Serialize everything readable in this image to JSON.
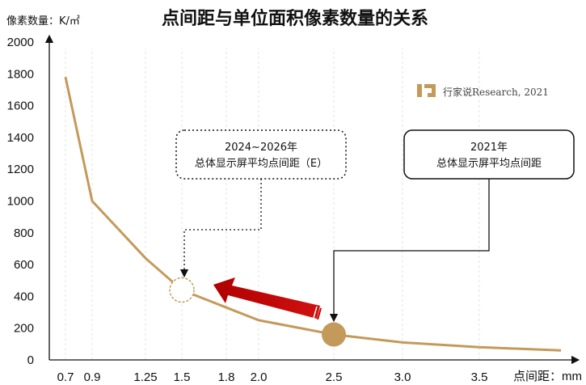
{
  "chart_data": {
    "type": "line",
    "title": "点间距与单位面积像素数量的关系",
    "ylabel": "像素数量：K/㎡",
    "xlabel": "点间距：mm",
    "ylim": [
      0,
      2000
    ],
    "yticks": [
      0,
      200,
      400,
      600,
      800,
      1000,
      1200,
      1400,
      1600,
      1800,
      2000
    ],
    "xticks": [
      0.7,
      0.9,
      1.25,
      1.5,
      1.8,
      2.0,
      2.5,
      3.0,
      3.5
    ],
    "xtick_labels": [
      "0.7",
      "0.9",
      "1.25",
      "1.5",
      "1.8",
      "2.0",
      "2.5",
      "3.0",
      "3.5"
    ],
    "grid": "vertical dashed",
    "series": [
      {
        "color": "#C49A5A",
        "x": [
          0.7,
          0.9,
          1.25,
          1.5,
          1.8,
          2.0,
          2.5,
          3.0,
          3.5,
          4.0
        ],
        "y": [
          1780,
          1000,
          640,
          440,
          330,
          250,
          160,
          110,
          80,
          60
        ]
      }
    ],
    "annotations": {
      "future": {
        "x": 1.5,
        "y": 440,
        "line1": "2024~2026年",
        "line2": "总体显示屏平均点间距（E）"
      },
      "current": {
        "x": 2.5,
        "y": 160,
        "line1": "2021年",
        "line2": "总体显示屏平均点间距"
      }
    },
    "watermark": "行家说Research, 2021",
    "colors": {
      "line": "#C49A5A",
      "marker": "#C49A5A",
      "arrow": "#C00000",
      "axis": "#111111"
    }
  }
}
